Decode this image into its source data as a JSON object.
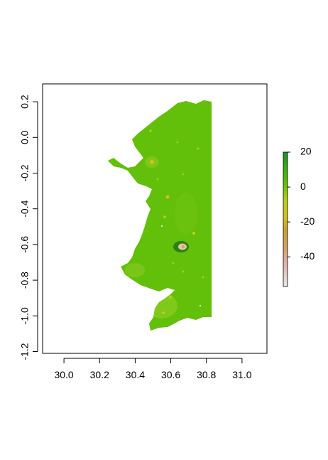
{
  "map": {
    "x_axis": {
      "range": [
        29.88,
        31.14
      ],
      "ticks": [
        "30.0",
        "30.2",
        "30.4",
        "30.6",
        "30.8",
        "31.0"
      ],
      "tick_values": [
        30.0,
        30.2,
        30.4,
        30.6,
        30.8,
        31.0
      ]
    },
    "y_axis": {
      "range": [
        -1.21,
        0.3
      ],
      "ticks": [
        "0.2",
        "0.0",
        "-0.2",
        "-0.4",
        "-0.6",
        "-0.8",
        "-1.0",
        "-1.2"
      ],
      "tick_values": [
        0.2,
        0.0,
        -0.2,
        -0.4,
        -0.6,
        -0.8,
        -1.0,
        -1.2
      ]
    },
    "legend": {
      "placement": "right",
      "ticks": [
        "20",
        "0",
        "-20",
        "-40"
      ],
      "tick_values": [
        20,
        0,
        -20,
        -40
      ],
      "range": [
        -57,
        20
      ],
      "colors": [
        "#e8e8e8",
        "#e6b8b4",
        "#d9a06b",
        "#c8a030",
        "#d4c414",
        "#b5d20c",
        "#57c000",
        "#18941c"
      ]
    },
    "colors": {
      "land": "#62bf0a",
      "land_light": "#8bcc22",
      "hotspot": "#d6c01e",
      "dark": "#2e7f14",
      "frame": "#000000"
    }
  }
}
